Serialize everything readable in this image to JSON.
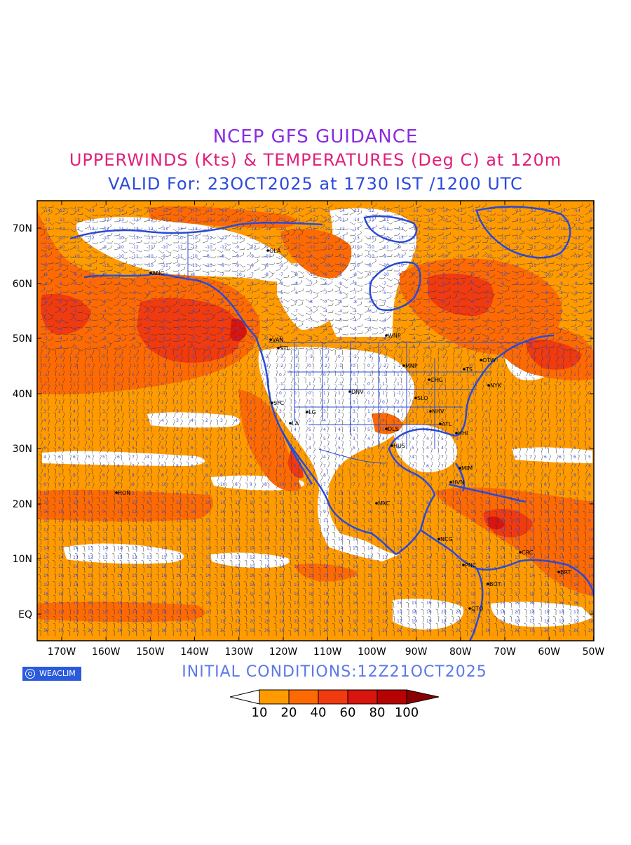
{
  "titles": {
    "line1": "NCEP GFS GUIDANCE",
    "line2": "UPPERWINDS (Kts) & TEMPERATURES (Deg C) at 120m",
    "line3": "VALID For: 23OCT2025 at 1730 IST /1200 UTC"
  },
  "map": {
    "lat_labels": [
      "70N",
      "60N",
      "50N",
      "40N",
      "30N",
      "20N",
      "10N",
      "EQ"
    ],
    "lon_labels": [
      "170W",
      "160W",
      "150W",
      "140W",
      "130W",
      "120W",
      "110W",
      "100W",
      "90W",
      "80W",
      "70W",
      "60W",
      "50W"
    ],
    "cities": [
      {
        "name": "ANC"
      },
      {
        "name": "OLA"
      },
      {
        "name": "VAN"
      },
      {
        "name": "STL"
      },
      {
        "name": "WNP"
      },
      {
        "name": "MNP"
      },
      {
        "name": "TS"
      },
      {
        "name": "OTW"
      },
      {
        "name": "CHG"
      },
      {
        "name": "NYK"
      },
      {
        "name": "DNV"
      },
      {
        "name": "SFC"
      },
      {
        "name": "LG"
      },
      {
        "name": "LA"
      },
      {
        "name": "SLO"
      },
      {
        "name": "NHV"
      },
      {
        "name": "ATL"
      },
      {
        "name": "DLS"
      },
      {
        "name": "HUS"
      },
      {
        "name": "HHI"
      },
      {
        "name": "MIM"
      },
      {
        "name": "HVN"
      },
      {
        "name": "HON"
      },
      {
        "name": "MXC"
      },
      {
        "name": "NCG"
      },
      {
        "name": "CRC"
      },
      {
        "name": "BRT"
      },
      {
        "name": "PNC"
      },
      {
        "name": "BOT"
      },
      {
        "name": "QTO"
      }
    ],
    "colors": {
      "light_orange": "#ff9b00",
      "orange": "#fd6a04",
      "red_orange": "#f03a10",
      "red": "#d8150e",
      "dark_red": "#b50202",
      "coastline": "#2a4bdc",
      "temp_text": "#3a4bd8"
    }
  },
  "footer": {
    "logo_text": "WEACLIM",
    "initial_conditions": "INITIAL CONDITIONS:12Z21OCT2025",
    "colorbar_labels": [
      "10",
      "20",
      "40",
      "60",
      "80",
      "100"
    ]
  }
}
